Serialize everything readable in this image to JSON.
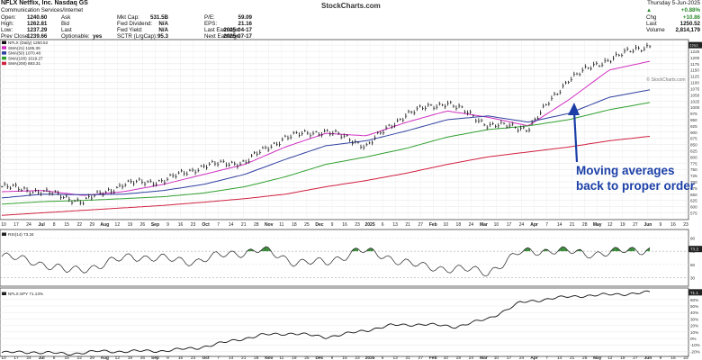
{
  "header": {
    "ticker_line": "NFLX Netflix, Inc. Nasdaq GS",
    "sector": "Communication Services/Internet",
    "brand": "StockCharts.com",
    "date": "Thursday 5-Jun-2025",
    "change_pct": "+0.88%",
    "change_label": "Chg",
    "change_value": "+10.86",
    "last_label": "Last",
    "last_value": "1250.52",
    "volume_label": "Volume",
    "volume_value": "2,814,179",
    "col1": [
      [
        "Open:",
        "1240.60"
      ],
      [
        "High:",
        "1262.81"
      ],
      [
        "Low:",
        "1237.29"
      ],
      [
        "Prev Close:",
        "1239.66"
      ]
    ],
    "col2": [
      [
        "Ask",
        ""
      ],
      [
        "Bid",
        ""
      ],
      [
        "Last",
        ""
      ],
      [
        "Optionable:",
        "yes"
      ]
    ],
    "col3": [
      [
        "Mkt Cap:",
        "531.5B"
      ],
      [
        "Fwd Dividend:",
        "N/A"
      ],
      [
        "Fwd Yield:",
        "N/A"
      ],
      [
        "SCTR (LrgCap):",
        "95.3"
      ]
    ],
    "col4": [
      [
        "P/E:",
        "59.09"
      ],
      [
        "EPS:",
        "21.16"
      ],
      [
        "Last Earnings:",
        "2025-04-17"
      ],
      [
        "Next Earnings:",
        "2025-07-17"
      ]
    ]
  },
  "colors": {
    "price_bars": "#111111",
    "sma21": "#d030c0",
    "sma50": "#3040a0",
    "sma100": "#30a030",
    "sma200": "#d02040",
    "annotation": "#1b3fa6",
    "rsi_fill": "#3a8a3a"
  },
  "annotation": {
    "line1": "Moving averages",
    "line2": "back to proper order"
  },
  "watermark": "© StockCharts.com",
  "chart_data": [
    {
      "type": "line",
      "name": "price panel",
      "legend": [
        "NFLX (Daily) 1250.52",
        "SMA(21) 1185.36",
        "SMA(50) 1070.48",
        "SMA(100) 1019.27",
        "SMA(200) 883.31"
      ],
      "x": [
        "2024-07-05",
        "2024-07-26",
        "2024-08-16",
        "2024-09-06",
        "2024-09-27",
        "2024-10-18",
        "2024-11-08",
        "2024-11-29",
        "2024-12-20",
        "2025-01-10",
        "2025-01-31",
        "2025-02-21",
        "2025-03-14",
        "2025-04-04",
        "2025-04-25",
        "2025-05-16",
        "2025-06-05"
      ],
      "series": [
        {
          "name": "NFLX (Daily)",
          "values": [
            680,
            660,
            620,
            690,
            705,
            765,
            780,
            880,
            905,
            845,
            975,
            1020,
            930,
            915,
            1115,
            1195,
            1250
          ]
        },
        {
          "name": "SMA(21)",
          "values": [
            660,
            665,
            645,
            660,
            690,
            730,
            770,
            840,
            895,
            885,
            940,
            985,
            960,
            925,
            1030,
            1150,
            1185
          ]
        },
        {
          "name": "SMA(50)",
          "values": [
            635,
            650,
            648,
            650,
            665,
            690,
            730,
            790,
            845,
            865,
            905,
            950,
            965,
            940,
            975,
            1040,
            1070
          ]
        },
        {
          "name": "SMA(100)",
          "values": [
            610,
            620,
            625,
            632,
            640,
            655,
            680,
            720,
            770,
            800,
            835,
            880,
            910,
            925,
            950,
            990,
            1019
          ]
        },
        {
          "name": "SMA(200)",
          "values": [
            565,
            575,
            585,
            595,
            605,
            618,
            632,
            650,
            680,
            705,
            735,
            770,
            800,
            820,
            840,
            865,
            883
          ]
        }
      ],
      "y_ticks": [
        575,
        600,
        625,
        650,
        675,
        700,
        725,
        750,
        775,
        800,
        825,
        850,
        875,
        900,
        925,
        950,
        975,
        1000,
        1025,
        1050,
        1075,
        1100,
        1125,
        1150,
        1175,
        1200,
        1225,
        1250
      ],
      "ylim": [
        555,
        1265
      ],
      "x_tick_labels": [
        "10",
        "17",
        "24",
        "Jul",
        "8",
        "15",
        "22",
        "29",
        "Aug",
        "12",
        "19",
        "26",
        "Sep",
        "9",
        "16",
        "23",
        "Oct",
        "7",
        "14",
        "21",
        "28",
        "Nov",
        "11",
        "18",
        "25",
        "Dec",
        "9",
        "16",
        "23",
        "2025",
        "6",
        "13",
        "21",
        "27",
        "Feb",
        "10",
        "18",
        "24",
        "Mar",
        "10",
        "17",
        "24",
        "Apr",
        "7",
        "14",
        "21",
        "28",
        "May",
        "12",
        "19",
        "27",
        "Jun",
        "9",
        "16",
        "23"
      ]
    },
    {
      "type": "line",
      "name": "RSI panel",
      "legend": [
        "RSI(14) 73.34"
      ],
      "y_ticks": [
        "90",
        "70",
        "50",
        "30"
      ],
      "last_value_label": "73.3",
      "x": [
        0,
        5,
        10,
        15,
        20,
        25,
        30,
        35,
        40,
        45,
        50,
        55,
        60,
        65,
        70,
        75,
        80,
        85,
        90,
        95,
        100
      ],
      "values": [
        62,
        55,
        40,
        48,
        63,
        58,
        55,
        66,
        72,
        55,
        52,
        72,
        60,
        46,
        44,
        38,
        68,
        72,
        66,
        69,
        73
      ],
      "ylim": [
        20,
        100
      ]
    },
    {
      "type": "line",
      "name": "Relative strength panel",
      "legend": [
        "NFLX:SPY 71.13%"
      ],
      "y_ticks": [
        "60%",
        "50%",
        "40%",
        "30%",
        "20%",
        "10%",
        "0%",
        "-10%",
        "-20%"
      ],
      "last_value_label": "71.1",
      "x": [
        0,
        5,
        10,
        15,
        20,
        25,
        30,
        35,
        40,
        45,
        50,
        55,
        60,
        65,
        70,
        75,
        80,
        85,
        90,
        95,
        100
      ],
      "values": [
        -22,
        -21,
        -24,
        -20,
        -20,
        -19,
        -15,
        -5,
        5,
        8,
        2,
        10,
        20,
        22,
        18,
        30,
        55,
        62,
        66,
        68,
        71
      ],
      "ylim": [
        -25,
        75
      ]
    }
  ]
}
